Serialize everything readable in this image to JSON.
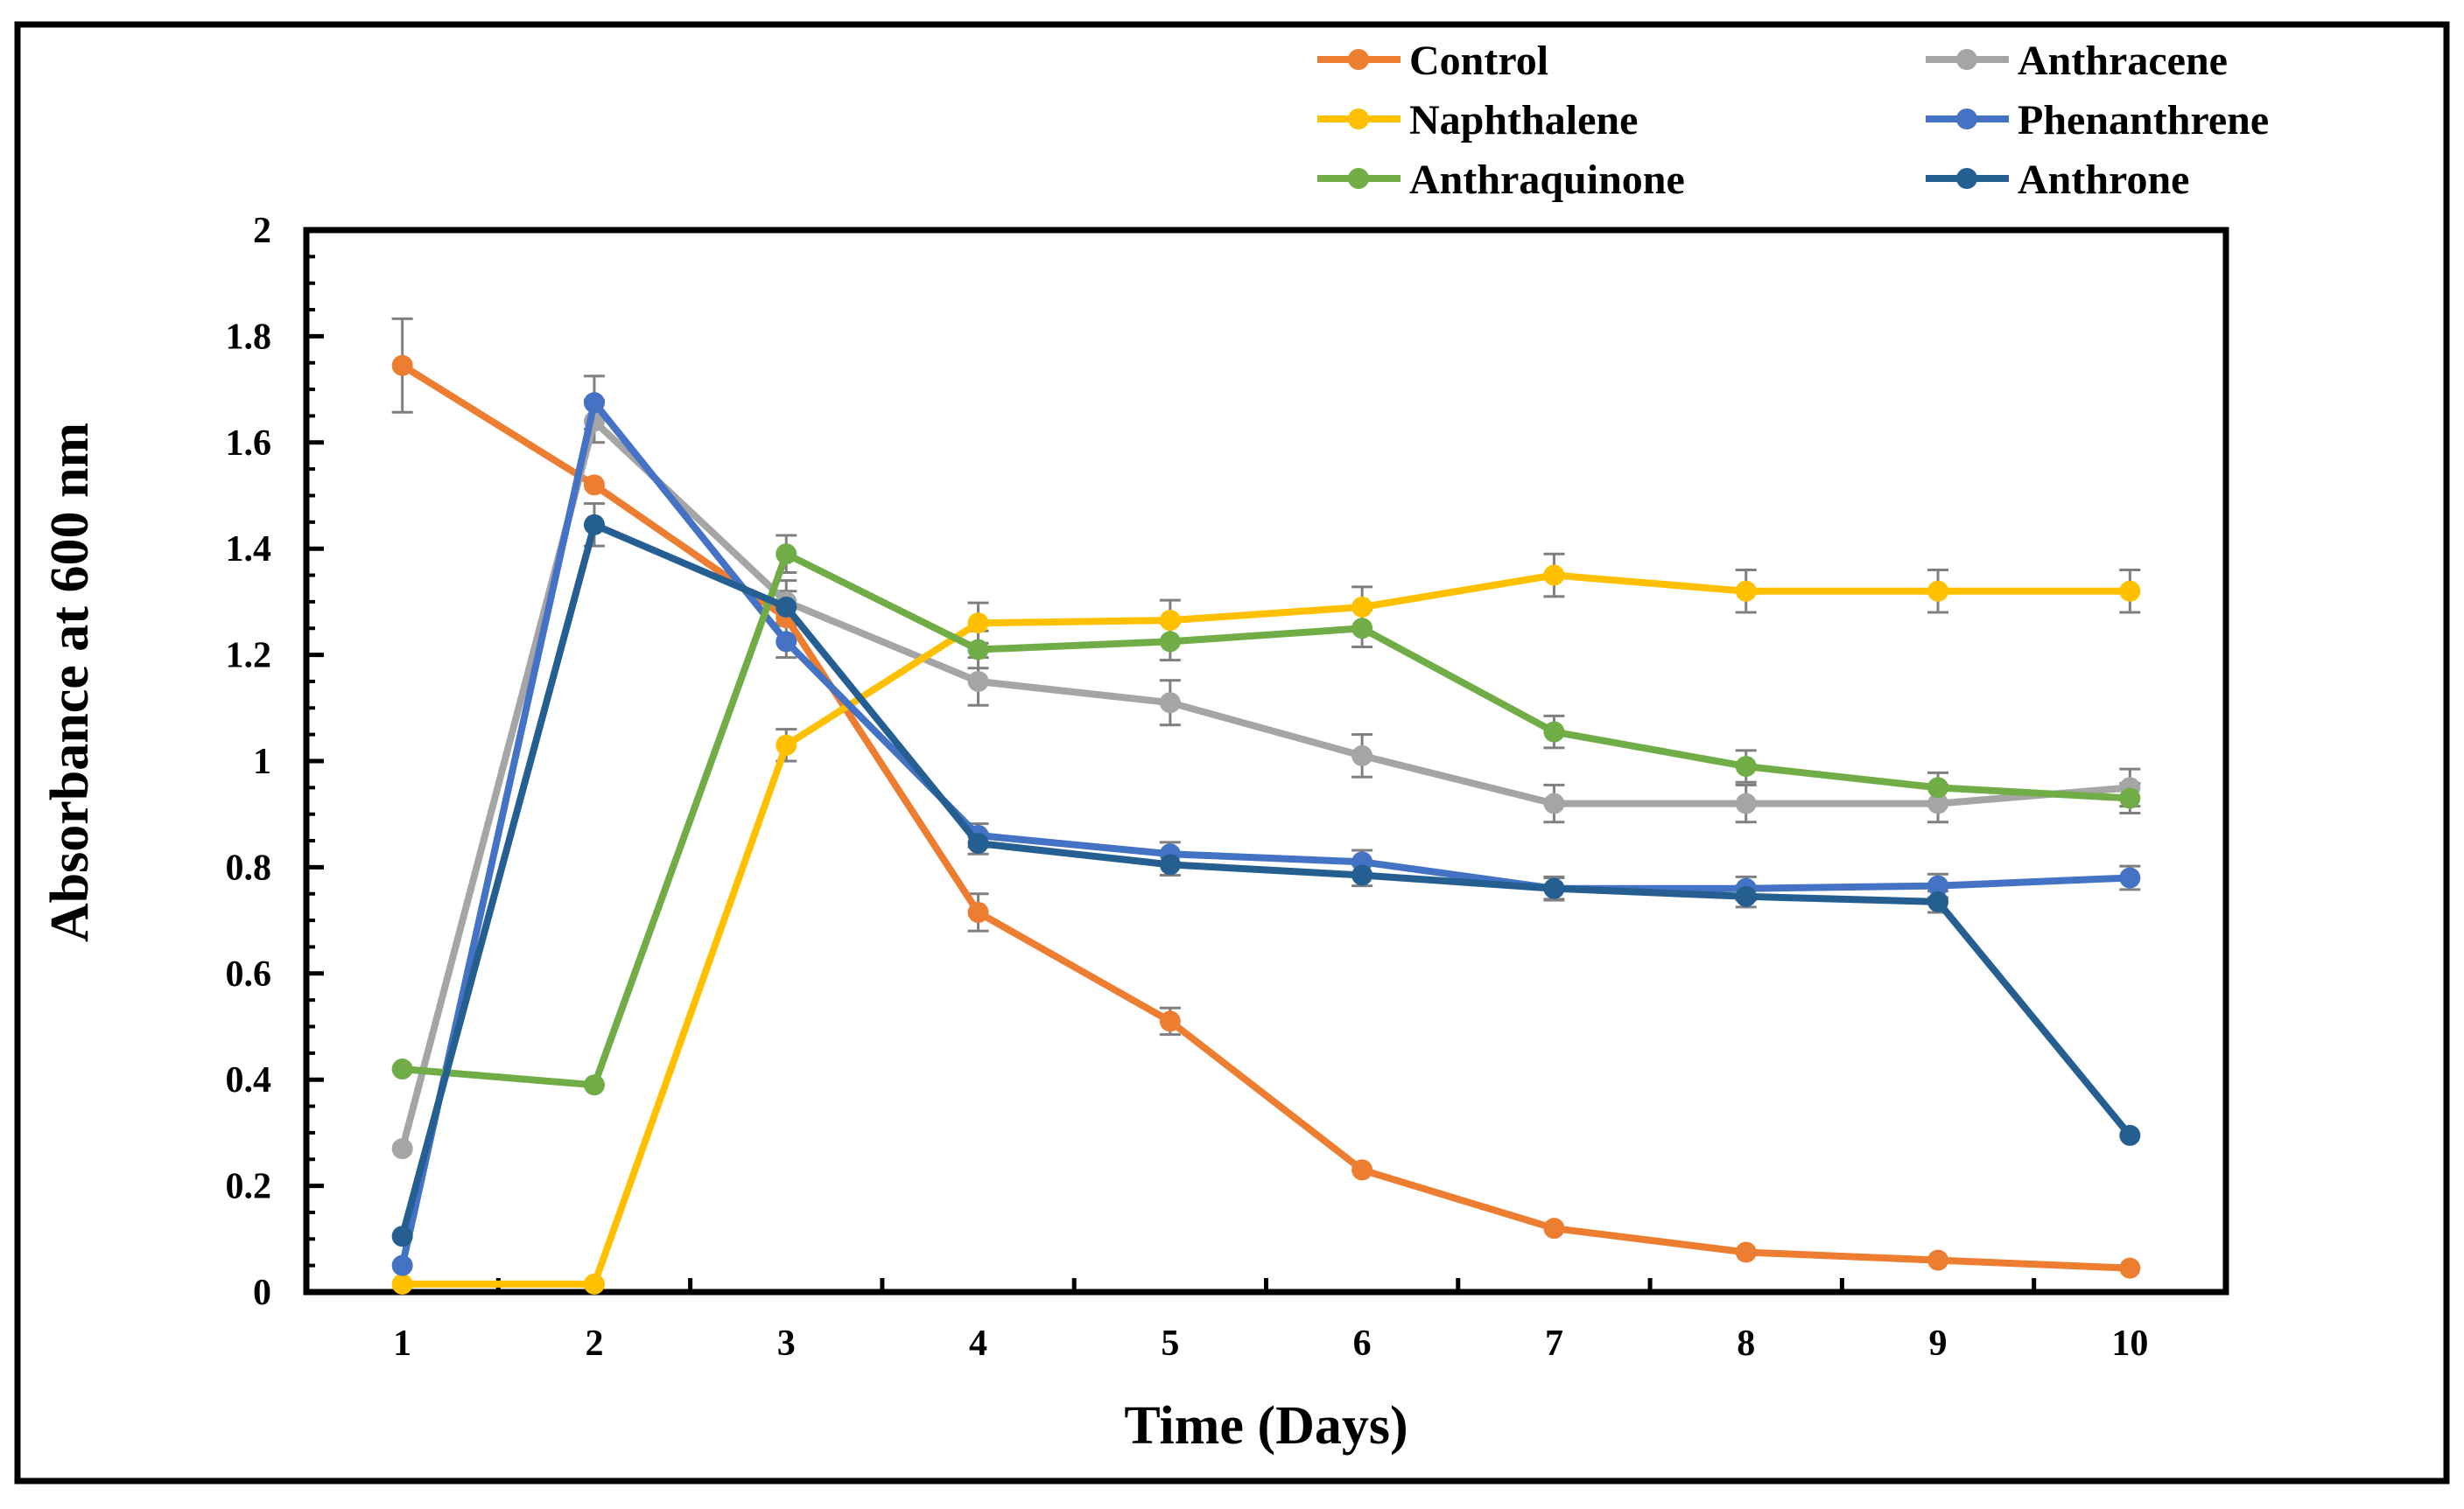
{
  "chart_data": {
    "type": "line",
    "title": "",
    "xlabel": "Time (Days)",
    "ylabel": "Absorbance at 600 nm",
    "x": [
      1,
      2,
      3,
      4,
      5,
      6,
      7,
      8,
      9,
      10
    ],
    "x_tick_labels": [
      "1",
      "2",
      "3",
      "4",
      "5",
      "6",
      "7",
      "8",
      "9",
      "10"
    ],
    "ylim": [
      0,
      2
    ],
    "y_ticks": [
      0,
      0.2,
      0.4,
      0.6,
      0.8,
      1,
      1.2,
      1.4,
      1.6,
      1.8,
      2
    ],
    "y_tick_labels": [
      "0",
      "0.2",
      "0.4",
      "0.6",
      "0.8",
      "1",
      "1.2",
      "1.4",
      "1.6",
      "1.8",
      "2"
    ],
    "grid": false,
    "legend_position": "top",
    "series": [
      {
        "name": "Control",
        "color": "#ED7D31",
        "values": [
          1.745,
          1.52,
          1.27,
          0.715,
          0.51,
          0.23,
          0.12,
          0.075,
          0.06,
          0.045
        ],
        "errors": [
          0.088,
          0.0,
          0.0,
          0.035,
          0.025,
          0.0,
          0.0,
          0.0,
          0.0,
          0.0
        ]
      },
      {
        "name": "Anthracene",
        "color": "#A5A5A5",
        "values": [
          0.27,
          1.64,
          1.3,
          1.15,
          1.11,
          1.01,
          0.92,
          0.92,
          0.92,
          0.95
        ],
        "errors": [
          0.0,
          0.04,
          0.04,
          0.045,
          0.042,
          0.04,
          0.035,
          0.035,
          0.035,
          0.035
        ]
      },
      {
        "name": "Naphthalene",
        "color": "#FFC000",
        "values": [
          0.015,
          0.015,
          1.03,
          1.26,
          1.265,
          1.29,
          1.35,
          1.32,
          1.32,
          1.32
        ],
        "errors": [
          0.0,
          0.0,
          0.03,
          0.038,
          0.038,
          0.038,
          0.04,
          0.04,
          0.04,
          0.04
        ]
      },
      {
        "name": "Phenanthrene",
        "color": "#4472C4",
        "values": [
          0.05,
          1.675,
          1.225,
          0.86,
          0.825,
          0.81,
          0.76,
          0.76,
          0.765,
          0.78
        ],
        "errors": [
          0.0,
          0.05,
          0.03,
          0.022,
          0.022,
          0.022,
          0.022,
          0.022,
          0.022,
          0.022
        ]
      },
      {
        "name": "Anthraquinone",
        "color": "#70AD47",
        "values": [
          0.42,
          0.39,
          1.39,
          1.21,
          1.225,
          1.25,
          1.055,
          0.99,
          0.95,
          0.93
        ],
        "errors": [
          0.0,
          0.0,
          0.035,
          0.035,
          0.035,
          0.035,
          0.03,
          0.03,
          0.028,
          0.028
        ]
      },
      {
        "name": "Anthrone",
        "color": "#255E91",
        "values": [
          0.105,
          1.445,
          1.29,
          0.845,
          0.805,
          0.785,
          0.76,
          0.745,
          0.735,
          0.295
        ],
        "errors": [
          0.0,
          0.04,
          0.03,
          0.02,
          0.02,
          0.02,
          0.02,
          0.02,
          0.02,
          0.0
        ]
      }
    ]
  }
}
